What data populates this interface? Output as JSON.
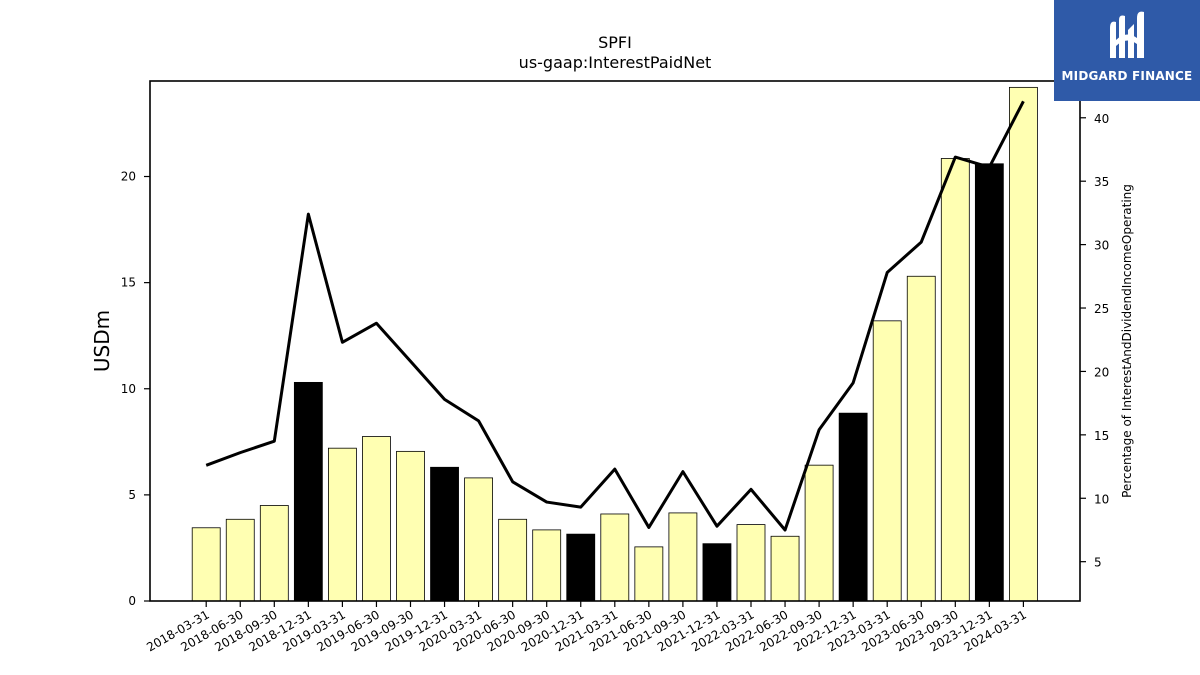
{
  "chart_data": {
    "type": "bar",
    "title": "SPFI",
    "subtitle": "us-gaap:InterestPaidNet",
    "ylabel": "USDm",
    "y2label": "Percentage of InterestAndDividendIncomeOperating",
    "categories": [
      "2018-03-31",
      "2018-06-30",
      "2018-09-30",
      "2018-12-31",
      "2019-03-31",
      "2019-06-30",
      "2019-09-30",
      "2019-12-31",
      "2020-03-31",
      "2020-06-30",
      "2020-09-30",
      "2020-12-31",
      "2021-03-31",
      "2021-06-30",
      "2021-09-30",
      "2021-12-31",
      "2022-03-31",
      "2022-06-30",
      "2022-09-30",
      "2022-12-31",
      "2023-03-31",
      "2023-06-30",
      "2023-09-30",
      "2023-12-31",
      "2024-03-31"
    ],
    "series": [
      {
        "type": "bar",
        "axis": "left",
        "values": [
          3.45,
          3.85,
          4.5,
          10.3,
          7.2,
          7.75,
          7.05,
          6.3,
          5.8,
          3.85,
          3.35,
          3.15,
          4.1,
          2.55,
          4.15,
          2.7,
          3.6,
          3.05,
          6.4,
          8.85,
          13.2,
          15.3,
          20.85,
          20.6,
          24.2
        ],
        "highlighted": [
          3,
          7,
          11,
          15,
          19,
          23
        ]
      },
      {
        "type": "line",
        "axis": "right",
        "values": [
          12.6,
          13.6,
          14.5,
          32.4,
          22.3,
          23.8,
          20.8,
          17.8,
          16.1,
          11.3,
          9.7,
          9.3,
          12.3,
          7.7,
          12.1,
          7.8,
          10.7,
          7.5,
          15.4,
          19.1,
          27.8,
          30.2,
          36.9,
          36.1,
          41.3
        ]
      }
    ],
    "ylim": [
      0,
      24.5
    ],
    "yticks": [
      0,
      5,
      10,
      15,
      20
    ],
    "y2lim": [
      1.9,
      42.9
    ],
    "y2ticks": [
      5,
      10,
      15,
      20,
      25,
      30,
      35,
      40
    ],
    "colors": {
      "bar": "#ffffb2",
      "bar_highlight": "#000000",
      "line": "#000000",
      "edge": "#000000"
    },
    "grid": false
  },
  "logo": {
    "text": "MIDGARD FINANCE",
    "background": "#2f5aa8"
  }
}
